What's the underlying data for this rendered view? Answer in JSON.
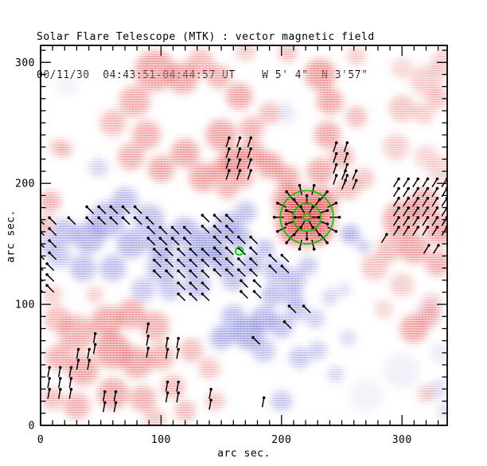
{
  "chart_data": {
    "type": "heatmap",
    "title": "Solar Flare Telescope (MTK) : vector magnetic field",
    "subtitle": "00/11/30  04:43:51-04:44:57 UT    W 5' 4\"  N 3'57\"",
    "xlabel": "arc sec.",
    "ylabel": "arc sec.",
    "xlim": [
      0,
      337.5
    ],
    "ylim": [
      0,
      314
    ],
    "x_major_ticks": [
      0,
      100,
      200,
      300
    ],
    "y_major_ticks": [
      0,
      100,
      200,
      300
    ],
    "minor_tick_step": 10,
    "grid": false,
    "legend": "none",
    "colors": {
      "positive_polarity": "#e04848",
      "negative_polarity": "#6868d2",
      "vector": "#000000",
      "contour": "#00c800",
      "axis": "#000000",
      "background": "#ffffff"
    },
    "blobs": {
      "comment_units": "x,y in arc sec (y up), r in arc sec, opacity 0-1",
      "positive": [
        [
          95,
          293,
          17,
          0.5
        ],
        [
          78,
          268,
          13,
          0.45
        ],
        [
          60,
          250,
          11,
          0.4
        ],
        [
          88,
          240,
          12,
          0.45
        ],
        [
          118,
          287,
          13,
          0.5
        ],
        [
          133,
          300,
          11,
          0.4
        ],
        [
          148,
          288,
          10,
          0.45
        ],
        [
          165,
          272,
          11,
          0.5
        ],
        [
          150,
          240,
          13,
          0.5
        ],
        [
          120,
          225,
          12,
          0.5
        ],
        [
          100,
          212,
          11,
          0.5
        ],
        [
          135,
          205,
          12,
          0.5
        ],
        [
          160,
          218,
          12,
          0.55
        ],
        [
          175,
          245,
          10,
          0.45
        ],
        [
          190,
          258,
          9,
          0.4
        ],
        [
          75,
          222,
          11,
          0.45
        ],
        [
          20,
          228,
          7,
          0.35
        ],
        [
          205,
          308,
          8,
          0.4
        ],
        [
          232,
          290,
          13,
          0.55
        ],
        [
          240,
          268,
          11,
          0.5
        ],
        [
          238,
          240,
          11,
          0.5
        ],
        [
          250,
          222,
          10,
          0.45
        ],
        [
          232,
          210,
          11,
          0.5
        ],
        [
          262,
          255,
          9,
          0.4
        ],
        [
          262,
          305,
          8,
          0.3
        ],
        [
          295,
          230,
          11,
          0.3
        ],
        [
          300,
          262,
          11,
          0.35
        ],
        [
          318,
          258,
          9,
          0.3
        ],
        [
          330,
          270,
          9,
          0.35
        ],
        [
          320,
          285,
          13,
          0.3
        ],
        [
          335,
          300,
          11,
          0.3
        ],
        [
          300,
          295,
          9,
          0.25
        ],
        [
          170,
          310,
          9,
          0.3
        ],
        [
          175,
          225,
          11,
          0.5
        ],
        [
          190,
          215,
          11,
          0.55
        ],
        [
          205,
          205,
          10,
          0.5
        ],
        [
          168,
          205,
          9,
          0.45
        ],
        [
          155,
          196,
          9,
          0.45
        ],
        [
          150,
          212,
          9,
          0.45
        ],
        [
          220,
          172,
          26,
          0.45
        ],
        [
          220,
          172,
          17,
          0.7
        ],
        [
          220,
          172,
          10,
          0.85
        ],
        [
          205,
          186,
          13,
          0.5
        ],
        [
          236,
          186,
          11,
          0.5
        ],
        [
          207,
          160,
          10,
          0.5
        ],
        [
          233,
          158,
          9,
          0.45
        ],
        [
          255,
          196,
          10,
          0.4
        ],
        [
          268,
          204,
          9,
          0.35
        ],
        [
          300,
          170,
          16,
          0.5
        ],
        [
          318,
          183,
          13,
          0.5
        ],
        [
          332,
          162,
          13,
          0.5
        ],
        [
          310,
          146,
          12,
          0.5
        ],
        [
          330,
          134,
          11,
          0.45
        ],
        [
          290,
          146,
          11,
          0.4
        ],
        [
          277,
          131,
          11,
          0.35
        ],
        [
          300,
          116,
          10,
          0.3
        ],
        [
          325,
          101,
          9,
          0.28
        ],
        [
          285,
          96,
          8,
          0.25
        ],
        [
          335,
          210,
          13,
          0.25
        ],
        [
          320,
          222,
          10,
          0.25
        ],
        [
          8,
          185,
          9,
          0.45
        ],
        [
          3,
          166,
          8,
          0.4
        ],
        [
          14,
          230,
          7,
          0.3
        ],
        [
          30,
          76,
          15,
          0.45
        ],
        [
          14,
          88,
          11,
          0.4
        ],
        [
          55,
          86,
          13,
          0.5
        ],
        [
          75,
          92,
          12,
          0.5
        ],
        [
          95,
          82,
          12,
          0.45
        ],
        [
          60,
          62,
          15,
          0.55
        ],
        [
          35,
          46,
          13,
          0.5
        ],
        [
          15,
          56,
          11,
          0.45
        ],
        [
          80,
          52,
          13,
          0.5
        ],
        [
          100,
          57,
          11,
          0.45
        ],
        [
          60,
          26,
          13,
          0.5
        ],
        [
          30,
          16,
          11,
          0.45
        ],
        [
          85,
          22,
          11,
          0.45
        ],
        [
          110,
          32,
          10,
          0.4
        ],
        [
          10,
          22,
          9,
          0.4
        ],
        [
          125,
          62,
          10,
          0.4
        ],
        [
          140,
          47,
          9,
          0.35
        ],
        [
          120,
          12,
          9,
          0.4
        ],
        [
          145,
          20,
          8,
          0.35
        ],
        [
          10,
          108,
          8,
          0.3
        ],
        [
          45,
          108,
          7,
          0.3
        ],
        [
          95,
          5,
          9,
          0.35
        ],
        [
          310,
          80,
          12,
          0.5
        ],
        [
          323,
          90,
          9,
          0.4
        ],
        [
          320,
          26,
          7,
          0.35
        ]
      ],
      "negative": [
        [
          55,
          170,
          15,
          0.5
        ],
        [
          40,
          155,
          13,
          0.5
        ],
        [
          70,
          186,
          11,
          0.45
        ],
        [
          90,
          170,
          13,
          0.45
        ],
        [
          48,
          213,
          8,
          0.3
        ],
        [
          75,
          150,
          12,
          0.5
        ],
        [
          100,
          150,
          13,
          0.5
        ],
        [
          120,
          160,
          12,
          0.5
        ],
        [
          140,
          150,
          13,
          0.55
        ],
        [
          125,
          136,
          12,
          0.5
        ],
        [
          100,
          130,
          12,
          0.45
        ],
        [
          60,
          130,
          11,
          0.45
        ],
        [
          35,
          130,
          11,
          0.45
        ],
        [
          15,
          140,
          10,
          0.4
        ],
        [
          20,
          160,
          11,
          0.45
        ],
        [
          5,
          150,
          9,
          0.35
        ],
        [
          155,
          165,
          11,
          0.5
        ],
        [
          170,
          176,
          9,
          0.45
        ],
        [
          165,
          155,
          10,
          0.5
        ],
        [
          150,
          136,
          11,
          0.5
        ],
        [
          130,
          116,
          11,
          0.45
        ],
        [
          108,
          113,
          10,
          0.4
        ],
        [
          85,
          112,
          10,
          0.4
        ],
        [
          160,
          121,
          10,
          0.45
        ],
        [
          175,
          133,
          9,
          0.5
        ],
        [
          186,
          146,
          8,
          0.45
        ],
        [
          195,
          128,
          10,
          0.45
        ],
        [
          210,
          120,
          10,
          0.45
        ],
        [
          193,
          108,
          10,
          0.45
        ],
        [
          222,
          132,
          8,
          0.4
        ],
        [
          257,
          158,
          8,
          0.55
        ],
        [
          268,
          148,
          6,
          0.4
        ],
        [
          172,
          76,
          13,
          0.55
        ],
        [
          185,
          88,
          11,
          0.5
        ],
        [
          160,
          90,
          10,
          0.45
        ],
        [
          150,
          72,
          10,
          0.4
        ],
        [
          185,
          62,
          10,
          0.4
        ],
        [
          200,
          82,
          10,
          0.45
        ],
        [
          213,
          95,
          9,
          0.4
        ],
        [
          228,
          88,
          8,
          0.35
        ],
        [
          200,
          20,
          9,
          0.4
        ],
        [
          215,
          56,
          9,
          0.4
        ],
        [
          230,
          62,
          8,
          0.35
        ],
        [
          245,
          42,
          7,
          0.3
        ],
        [
          255,
          72,
          7,
          0.28
        ],
        [
          210,
          106,
          8,
          0.4
        ],
        [
          240,
          106,
          7,
          0.3
        ],
        [
          252,
          112,
          6,
          0.25
        ],
        [
          330,
          30,
          8,
          0.25
        ],
        [
          336,
          12,
          7,
          0.25
        ],
        [
          300,
          45,
          15,
          0.12
        ],
        [
          270,
          25,
          14,
          0.1
        ],
        [
          320,
          95,
          10,
          0.12
        ],
        [
          332,
          60,
          9,
          0.15
        ],
        [
          152,
          75,
          10,
          0.2
        ],
        [
          205,
          255,
          8,
          0.12
        ],
        [
          22,
          280,
          9,
          0.1
        ],
        [
          203,
          262,
          7,
          0.12
        ]
      ]
    },
    "vectors": {
      "length_arcsec": 8,
      "comment": "clusters: [x,y,cols,rows,sx,sy,angle_deg CCW from +x, y-up]",
      "clusters": [
        [
          44,
          175,
          5,
          1,
          10,
          0,
          135
        ],
        [
          3,
          166,
          2,
          1,
          10,
          0,
          135
        ],
        [
          29,
          166,
          1,
          1,
          0,
          0,
          135
        ],
        [
          44,
          166,
          6,
          1,
          10,
          0,
          135
        ],
        [
          3,
          157,
          2,
          3,
          10,
          -10,
          135
        ],
        [
          95,
          158,
          4,
          2,
          10,
          -9,
          135
        ],
        [
          140,
          168,
          3,
          2,
          10,
          -9,
          135
        ],
        [
          100,
          140,
          5,
          3,
          10,
          -9,
          135
        ],
        [
          150,
          150,
          4,
          4,
          10,
          -9,
          135
        ],
        [
          120,
          112,
          3,
          2,
          10,
          -9,
          135
        ],
        [
          172,
          114,
          2,
          2,
          11,
          -9,
          135
        ],
        [
          2,
          128,
          2,
          3,
          9,
          -9,
          135
        ],
        [
          196,
          135,
          2,
          2,
          10,
          -9,
          135
        ],
        [
          212,
          93,
          2,
          1,
          12,
          0,
          135
        ],
        [
          208,
          80,
          1,
          1,
          0,
          0,
          135
        ],
        [
          182,
          67,
          1,
          1,
          0,
          0,
          135
        ],
        [
          6,
          40,
          3,
          3,
          9,
          -9,
          80
        ],
        [
          30,
          55,
          2,
          2,
          9,
          -9,
          80
        ],
        [
          44,
          68,
          1,
          2,
          0,
          -9,
          80
        ],
        [
          88,
          76,
          1,
          3,
          0,
          -10,
          80
        ],
        [
          104,
          64,
          2,
          2,
          9,
          -9,
          80
        ],
        [
          52,
          20,
          2,
          2,
          9,
          -9,
          80
        ],
        [
          104,
          28,
          2,
          2,
          9,
          -9,
          80
        ],
        [
          140,
          22,
          1,
          2,
          0,
          -9,
          80
        ],
        [
          184,
          15,
          1,
          1,
          0,
          0,
          80
        ],
        [
          154,
          230,
          3,
          4,
          9,
          -9,
          72
        ],
        [
          243,
          226,
          2,
          4,
          9,
          -9,
          72
        ],
        [
          250,
          203,
          2,
          2,
          9,
          -8,
          68
        ],
        [
          293,
          197,
          6,
          6,
          8,
          -8,
          58
        ],
        [
          283,
          151,
          1,
          1,
          0,
          0,
          58
        ],
        [
          318,
          142,
          2,
          1,
          8,
          0,
          58
        ]
      ],
      "radial": {
        "cx": 221,
        "cy": 172,
        "rings": [
          [
            4,
            6,
            6
          ],
          [
            11,
            10,
            7
          ],
          [
            19,
            14,
            8
          ]
        ],
        "rings_comment": "[base radius arc sec, vector count, vector length arc sec]"
      }
    },
    "contours": {
      "circles": [
        [
          221,
          172,
          22
        ],
        [
          221,
          172,
          11.5
        ],
        [
          221,
          172,
          3
        ],
        [
          165,
          144,
          3.2
        ]
      ],
      "circles_comment": "[cx,cy,r] arc sec, green field-strength contours"
    }
  }
}
